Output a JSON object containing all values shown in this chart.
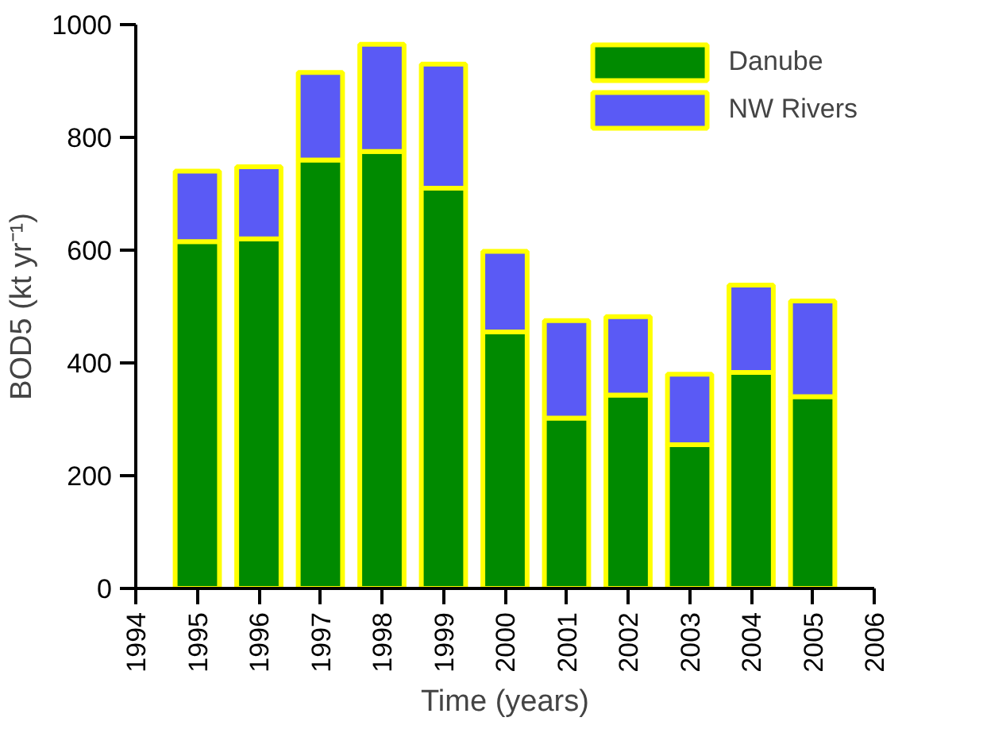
{
  "chart_data": {
    "type": "bar",
    "stacked": true,
    "xlabel": "Time (years)",
    "ylabel": "BOD5 (kt yr⁻¹)",
    "x": [
      1995,
      1996,
      1997,
      1998,
      1999,
      2000,
      2001,
      2002,
      2003,
      2004,
      2005
    ],
    "xlim": [
      1994,
      2006
    ],
    "xticks": [
      1994,
      1995,
      1996,
      1997,
      1998,
      1999,
      2000,
      2001,
      2002,
      2003,
      2004,
      2005,
      2006
    ],
    "ylim": [
      0,
      1000
    ],
    "yticks": [
      0,
      200,
      400,
      600,
      800,
      1000
    ],
    "series": [
      {
        "name": "Danube",
        "color": "#008a00",
        "values": [
          615,
          620,
          760,
          775,
          710,
          455,
          302,
          343,
          255,
          383,
          340
        ]
      },
      {
        "name": "NW Rivers",
        "color": "#5a5af5",
        "values": [
          125,
          128,
          155,
          190,
          220,
          143,
          173,
          139,
          125,
          155,
          170
        ]
      }
    ],
    "grid": false,
    "legend": "top right"
  }
}
